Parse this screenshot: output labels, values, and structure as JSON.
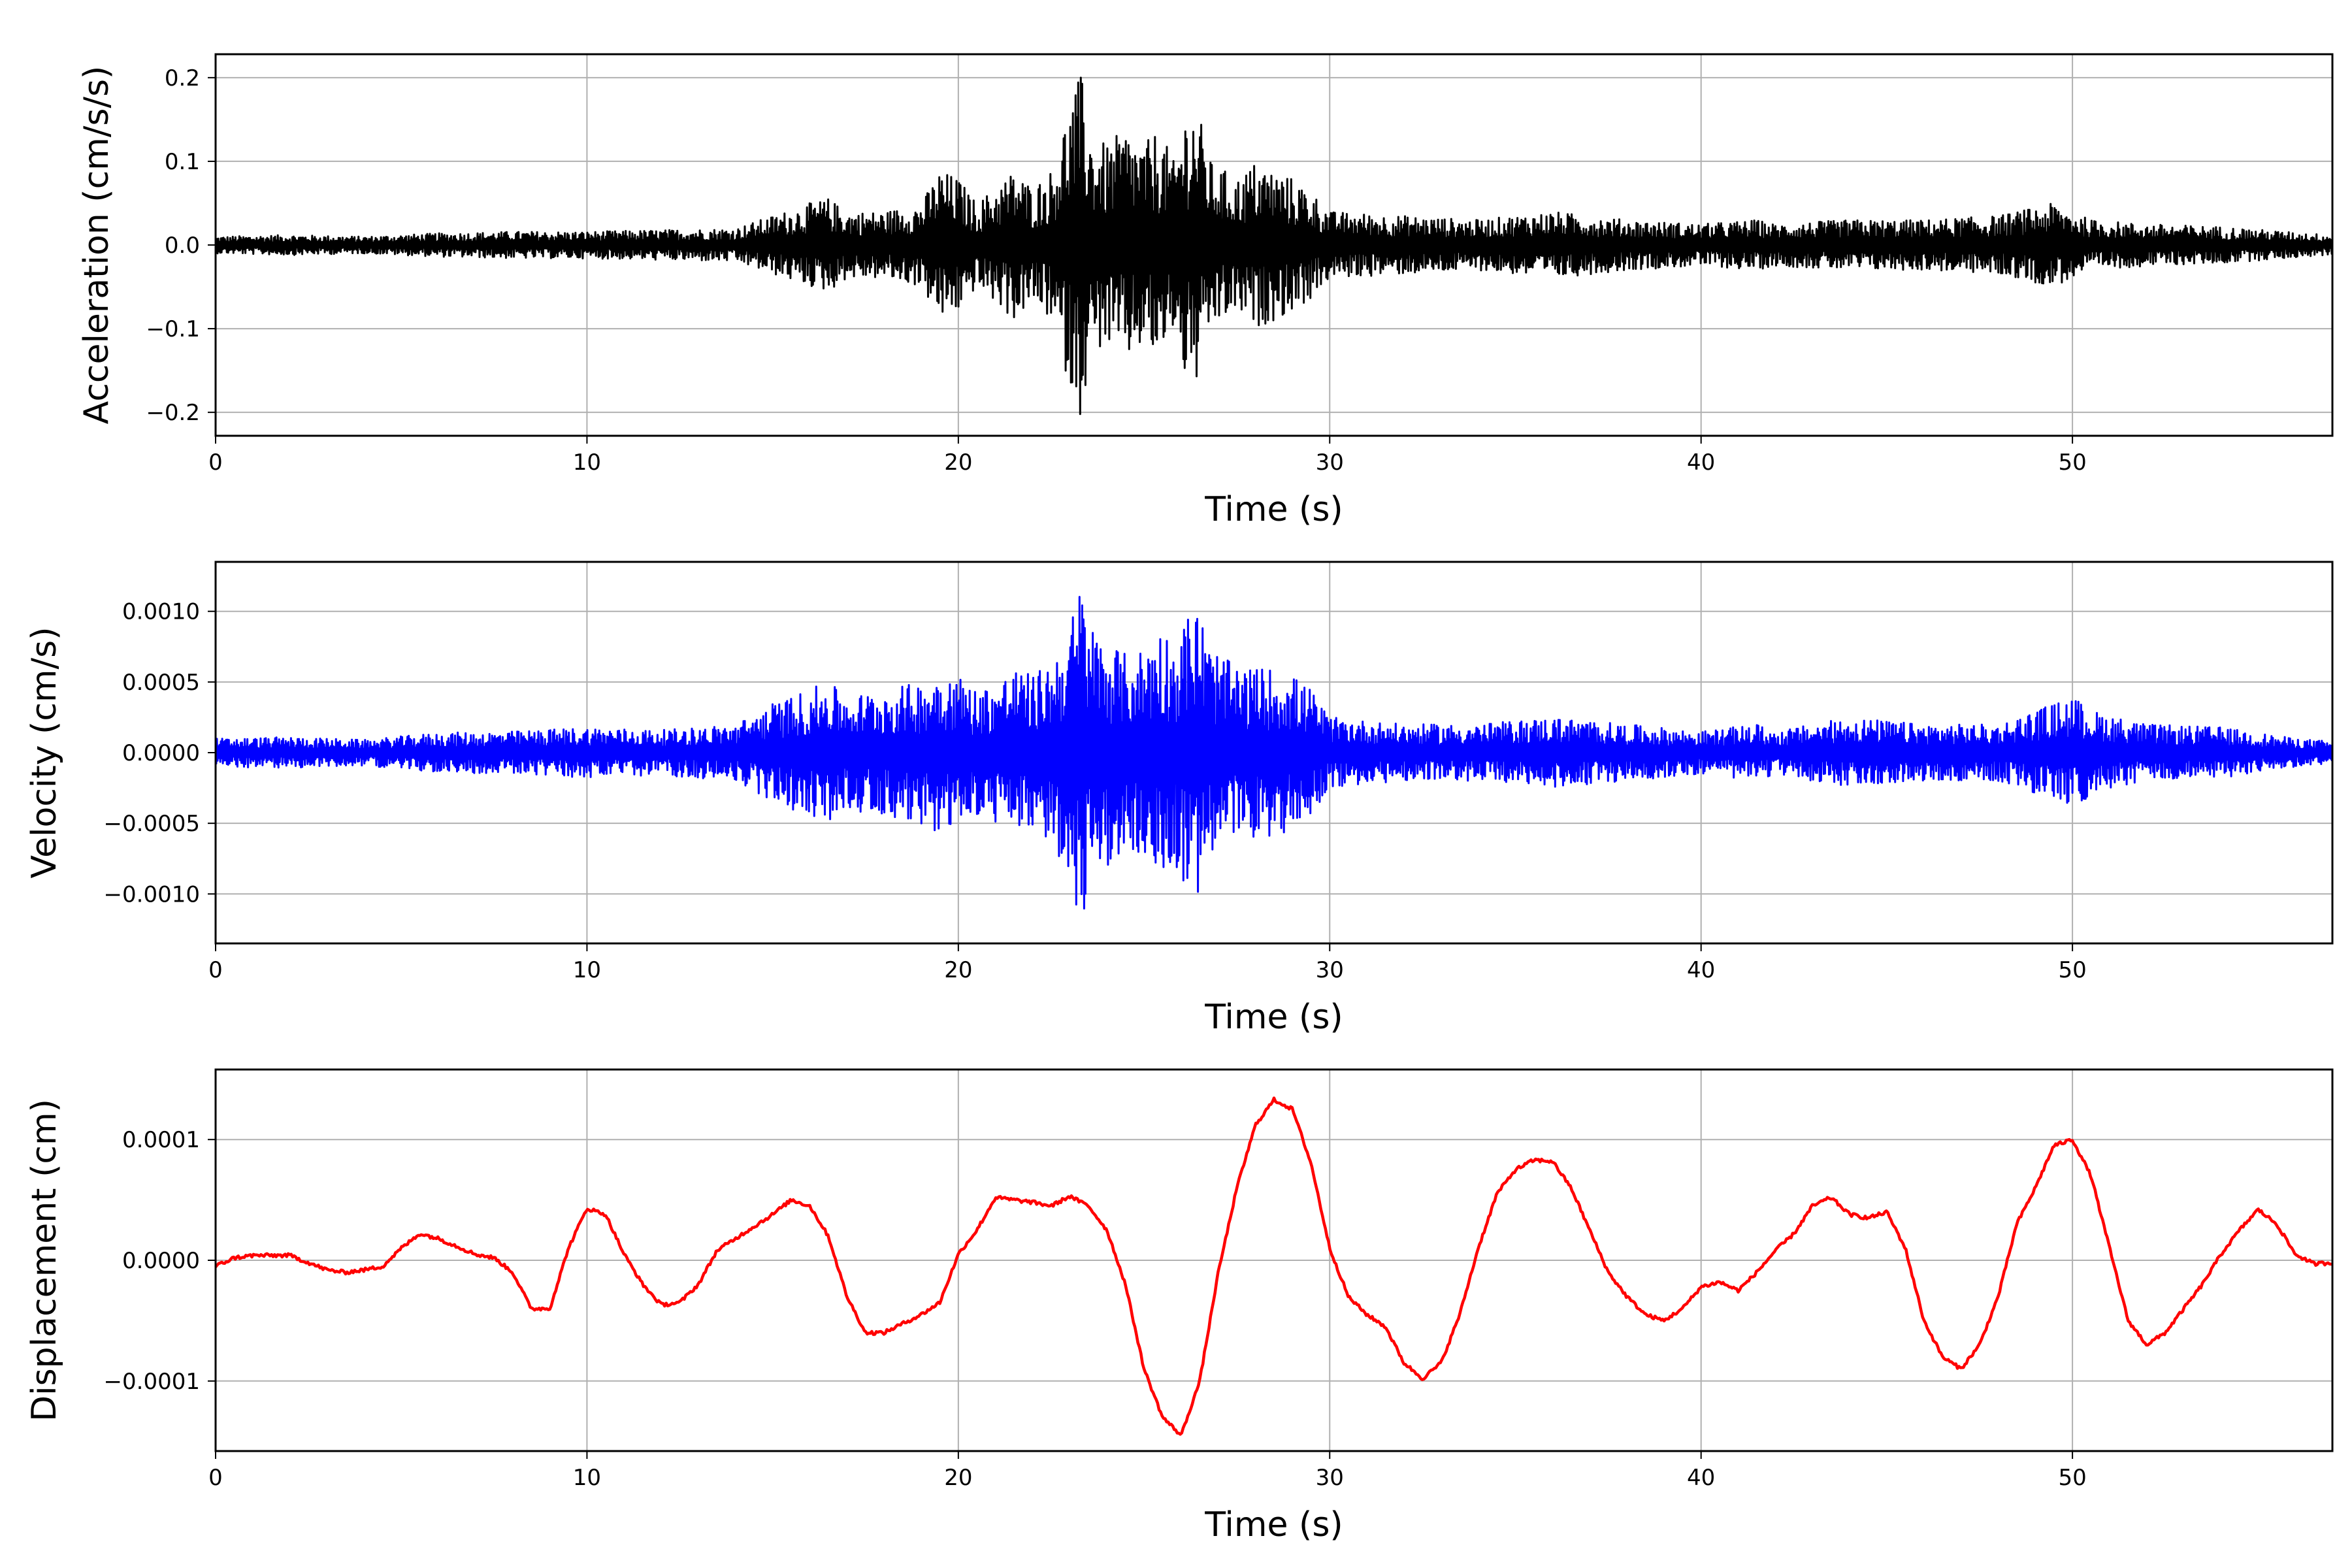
{
  "chart_data": [
    {
      "type": "line",
      "title": "",
      "xlabel": "Time (s)",
      "ylabel": "Acceleration (cm/s/s)",
      "xlim": [
        0,
        57
      ],
      "ylim": [
        -0.228,
        0.228
      ],
      "xticks": [
        0,
        10,
        20,
        30,
        40,
        50
      ],
      "xtick_labels": [
        "0",
        "10",
        "20",
        "30",
        "40",
        "50"
      ],
      "yticks": [
        -0.2,
        -0.1,
        0.0,
        0.1,
        0.2
      ],
      "ytick_labels": [
        "−0.2",
        "−0.1",
        "0.0",
        "0.1",
        "0.2"
      ],
      "grid": true,
      "color": "#000000",
      "signal": "oscillatory",
      "series": [
        {
          "x": [
            0,
            2,
            4,
            6,
            8,
            10,
            12,
            14,
            15,
            16,
            16.5,
            17,
            18,
            19,
            19.5,
            20,
            20.5,
            21,
            21.5,
            22,
            22.5,
            23,
            23.3,
            23.6,
            24,
            24.5,
            25,
            25.4,
            25.8,
            26.1,
            26.4,
            26.8,
            27.5,
            28,
            28.5,
            29,
            29.5,
            30,
            32,
            34,
            36,
            38,
            40,
            41.5,
            42,
            44,
            46,
            48,
            49.5,
            50,
            50.5,
            52,
            54,
            56,
            57
          ],
          "values": [
            0.01,
            0.012,
            0.01,
            0.014,
            0.016,
            0.016,
            0.018,
            0.02,
            0.035,
            0.05,
            0.056,
            0.04,
            0.04,
            0.05,
            0.09,
            0.08,
            0.05,
            0.07,
            0.09,
            0.07,
            0.09,
            0.17,
            0.205,
            0.13,
            0.12,
            0.14,
            0.12,
            0.14,
            0.1,
            0.16,
            0.17,
            0.1,
            0.08,
            0.1,
            0.09,
            0.08,
            0.065,
            0.04,
            0.035,
            0.03,
            0.04,
            0.03,
            0.025,
            0.03,
            0.025,
            0.03,
            0.03,
            0.035,
            0.05,
            0.04,
            0.03,
            0.025,
            0.022,
            0.015,
            0.012
          ]
        }
      ]
    },
    {
      "type": "line",
      "title": "",
      "xlabel": "Time (s)",
      "ylabel": "Velocity (cm/s)",
      "xlim": [
        0,
        57
      ],
      "ylim": [
        -0.00135,
        0.00135
      ],
      "xticks": [
        0,
        10,
        20,
        30,
        40,
        50
      ],
      "xtick_labels": [
        "0",
        "10",
        "20",
        "30",
        "40",
        "50"
      ],
      "yticks": [
        -0.001,
        -0.0005,
        0.0,
        0.0005,
        0.001
      ],
      "ytick_labels": [
        "−0.0010",
        "−0.0005",
        "0.0000",
        "0.0005",
        "0.0010"
      ],
      "grid": true,
      "color": "#0000ff",
      "signal": "oscillatory",
      "series": [
        {
          "x": [
            0,
            2,
            4,
            6,
            8,
            10,
            12,
            14,
            15,
            16,
            16.5,
            17,
            18,
            19,
            19.5,
            20,
            20.5,
            21,
            21.5,
            22,
            22.5,
            23,
            23.3,
            23.6,
            24,
            24.5,
            25,
            25.4,
            25.8,
            26.1,
            26.4,
            26.8,
            27.5,
            28,
            28.5,
            29,
            29.5,
            30,
            32,
            34,
            36,
            38,
            40,
            41.5,
            42,
            44,
            46,
            48,
            49.5,
            50,
            50.5,
            52,
            54,
            56,
            57
          ],
          "values": [
            0.0001,
            0.00011,
            9e-05,
            0.00014,
            0.00015,
            0.00018,
            0.00016,
            0.0002,
            0.00035,
            0.00045,
            0.0005,
            0.0004,
            0.00045,
            0.0005,
            0.0006,
            0.00055,
            0.00045,
            0.0005,
            0.0006,
            0.00055,
            0.00065,
            0.0009,
            0.00123,
            0.0009,
            0.0008,
            0.0007,
            0.00075,
            0.0009,
            0.0008,
            0.00095,
            0.00108,
            0.00075,
            0.0006,
            0.0006,
            0.0006,
            0.00055,
            0.00045,
            0.00025,
            0.0002,
            0.0002,
            0.00025,
            0.0002,
            0.00015,
            0.0002,
            0.00015,
            0.00025,
            0.0002,
            0.0002,
            0.00035,
            0.0004,
            0.0003,
            0.0002,
            0.00018,
            0.0001,
            8e-05
          ]
        }
      ]
    },
    {
      "type": "line",
      "title": "",
      "xlabel": "Time (s)",
      "ylabel": "Displacement (cm)",
      "xlim": [
        0,
        57
      ],
      "ylim": [
        -0.000158,
        0.000158
      ],
      "xticks": [
        0,
        10,
        20,
        30,
        40,
        50
      ],
      "xtick_labels": [
        "0",
        "10",
        "20",
        "30",
        "40",
        "50"
      ],
      "yticks": [
        -0.0001,
        0.0,
        0.0001
      ],
      "ytick_labels": [
        "−0.0001",
        "0.0000",
        "0.0001"
      ],
      "grid": true,
      "color": "#ff0000",
      "signal": "smooth",
      "series": [
        {
          "x": [
            0,
            0.5,
            1,
            2,
            3,
            3.5,
            4,
            4.5,
            5,
            5.5,
            6,
            7,
            7.5,
            8,
            8.5,
            9,
            9.5,
            10,
            10.5,
            11,
            11.5,
            12,
            12.5,
            13,
            13.5,
            14,
            15,
            15.5,
            16,
            16.5,
            17,
            17.5,
            18,
            19,
            19.5,
            20,
            20.5,
            21,
            22,
            22.5,
            23,
            23.5,
            24,
            24.5,
            25,
            25.5,
            26,
            26.5,
            27,
            27.5,
            28,
            28.5,
            29,
            29.5,
            30,
            30.5,
            31,
            31.5,
            32,
            32.5,
            33,
            33.5,
            34,
            34.5,
            35,
            35.5,
            36,
            36.5,
            37,
            37.5,
            38,
            38.5,
            39,
            39.5,
            40,
            40.5,
            41,
            41.5,
            42,
            42.5,
            43,
            43.5,
            44,
            44.5,
            45,
            45.5,
            46,
            46.5,
            47,
            47.5,
            48,
            48.5,
            49,
            49.5,
            50,
            50.5,
            51,
            51.5,
            52,
            52.5,
            53,
            53.5,
            54,
            54.5,
            55,
            55.5,
            56,
            56.5,
            57
          ],
          "values": [
            -5e-06,
            2e-06,
            4e-06,
            4e-06,
            -8e-06,
            -1e-05,
            -8e-06,
            -5e-06,
            1e-05,
            2.2e-05,
            1.8e-05,
            5e-06,
            2e-06,
            -1e-05,
            -4e-05,
            -4e-05,
            1e-05,
            4.3e-05,
            3.8e-05,
            5e-06,
            -2e-05,
            -3.7e-05,
            -3.5e-05,
            -2e-05,
            8e-06,
            1.8e-05,
            3.8e-05,
            5e-05,
            4.5e-05,
            2e-05,
            -3e-05,
            -6e-05,
            -6e-05,
            -4.5e-05,
            -3.5e-05,
            5e-06,
            2.5e-05,
            5.2e-05,
            4.8e-05,
            4.5e-05,
            5.3e-05,
            4.5e-05,
            2.5e-05,
            -2e-05,
            -9e-05,
            -0.00013,
            -0.000145,
            -0.0001,
            -1e-05,
            6e-05,
            0.000112,
            0.000133,
            0.000125,
            8e-05,
            1e-05,
            -3e-05,
            -4.5e-05,
            -5.5e-05,
            -8.5e-05,
            -9.8e-05,
            -8.5e-05,
            -4.5e-05,
            1e-05,
            5.5e-05,
            7.5e-05,
            8.3e-05,
            8.2e-05,
            6e-05,
            2.5e-05,
            -1e-05,
            -3e-05,
            -4.5e-05,
            -5e-05,
            -4e-05,
            -2.2e-05,
            -1.8e-05,
            -2.5e-05,
            -1e-05,
            8e-06,
            2.2e-05,
            4.5e-05,
            5.2e-05,
            3.8e-05,
            3.5e-05,
            4e-05,
            1e-05,
            -5e-05,
            -8e-05,
            -9e-05,
            -7e-05,
            -3e-05,
            3e-05,
            6e-05,
            9.5e-05,
            0.0001,
            7e-05,
            1e-05,
            -5e-05,
            -7e-05,
            -6e-05,
            -4e-05,
            -2e-05,
            5e-06,
            2.5e-05,
            4.2e-05,
            3e-05,
            5e-06,
            -3e-06,
            -2e-06
          ]
        }
      ]
    }
  ]
}
